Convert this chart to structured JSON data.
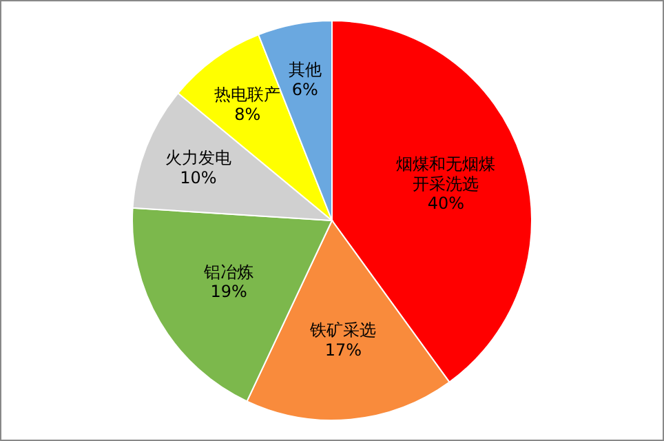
{
  "chart_data": {
    "type": "pie",
    "categories": [
      "烟煤和无烟煤开采洗选",
      "铁矿采选",
      "铝冶炼",
      "火力发电",
      "热电联产",
      "其他"
    ],
    "values": [
      40,
      17,
      19,
      10,
      8,
      6
    ],
    "value_labels": [
      "40%",
      "17%",
      "19%",
      "10%",
      "8%",
      "6%"
    ],
    "colors": [
      "#ff0000",
      "#f98b3c",
      "#7cb84c",
      "#d0d0d0",
      "#ffff00",
      "#6aa8e0"
    ],
    "legend": false
  }
}
